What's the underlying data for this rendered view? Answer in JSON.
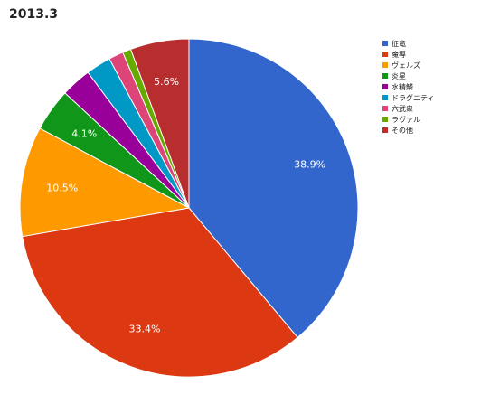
{
  "chart_data": {
    "type": "pie",
    "title": "2013.3",
    "legend_position": "top-right",
    "slices": [
      {
        "name": "征竜",
        "value": 38.9,
        "label": "38.9%",
        "color": "#3366cc"
      },
      {
        "name": "魔導",
        "value": 33.4,
        "label": "33.4%",
        "color": "#dc3912"
      },
      {
        "name": "ヴェルズ",
        "value": 10.5,
        "label": "10.5%",
        "color": "#ff9900"
      },
      {
        "name": "炎星",
        "value": 4.1,
        "label": "4.1%",
        "color": "#109618"
      },
      {
        "name": "水精鱗",
        "value": 2.9,
        "label": "",
        "color": "#990099"
      },
      {
        "name": "ドラグニティ",
        "value": 2.4,
        "label": "",
        "color": "#0099c6"
      },
      {
        "name": "六武衆",
        "value": 1.4,
        "label": "",
        "color": "#dd4477"
      },
      {
        "name": "ラヴァル",
        "value": 0.8,
        "label": "",
        "color": "#66aa00"
      },
      {
        "name": "その他",
        "value": 5.6,
        "label": "5.6%",
        "color": "#b82e2e"
      }
    ]
  }
}
